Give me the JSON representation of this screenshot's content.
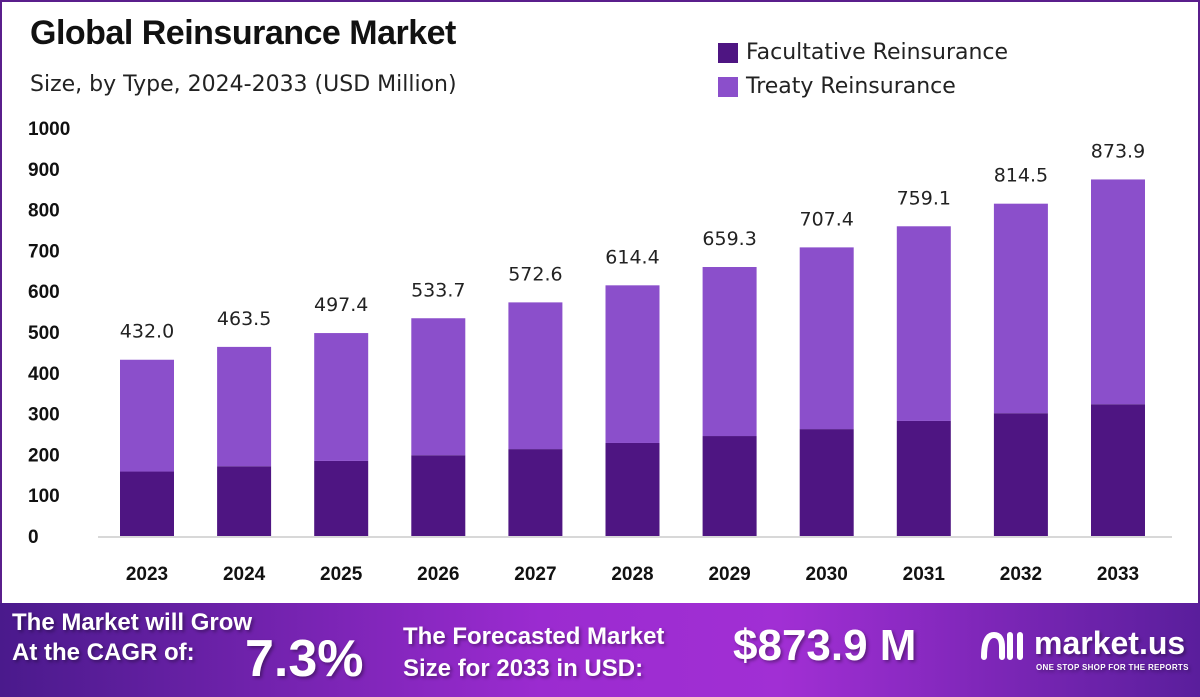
{
  "chart_data": {
    "type": "bar",
    "stacked": true,
    "title": "Global Reinsurance Market",
    "subtitle": "Size, by Type, 2024-2033 (USD Million)",
    "categories": [
      "2023",
      "2024",
      "2025",
      "2026",
      "2027",
      "2028",
      "2029",
      "2030",
      "2031",
      "2032",
      "2033"
    ],
    "series": [
      {
        "name": "Facultative Reinsurance",
        "color": "#4e1582",
        "values": [
          158,
          171,
          184,
          198,
          213,
          228,
          245,
          262,
          282,
          301,
          323
        ]
      },
      {
        "name": "Treaty Reinsurance",
        "color": "#8b4fcb",
        "values": [
          274,
          292.5,
          313.4,
          335.7,
          359.6,
          386.4,
          414.3,
          445.4,
          477.1,
          513.5,
          550.9
        ]
      }
    ],
    "totals": [
      "432.0",
      "463.5",
      "497.4",
      "533.7",
      "572.6",
      "614.4",
      "659.3",
      "707.4",
      "759.1",
      "814.5",
      "873.9"
    ],
    "ylim": [
      0,
      1000
    ],
    "yticks": [
      "0",
      "100",
      "200",
      "300",
      "400",
      "500",
      "600",
      "700",
      "800",
      "900",
      "1000"
    ],
    "grid": false,
    "legend": "top-right"
  },
  "banner": {
    "cagr_line1": "The Market will Grow",
    "cagr_line2": "At the CAGR of:",
    "cagr_value": "7.3%",
    "forecast_line1": "The Forecasted Market",
    "forecast_line2": "Size for 2033 in USD:",
    "forecast_value": "$873.9 M",
    "logo_name": "market.us",
    "logo_tagline": "ONE STOP SHOP FOR THE REPORTS"
  }
}
